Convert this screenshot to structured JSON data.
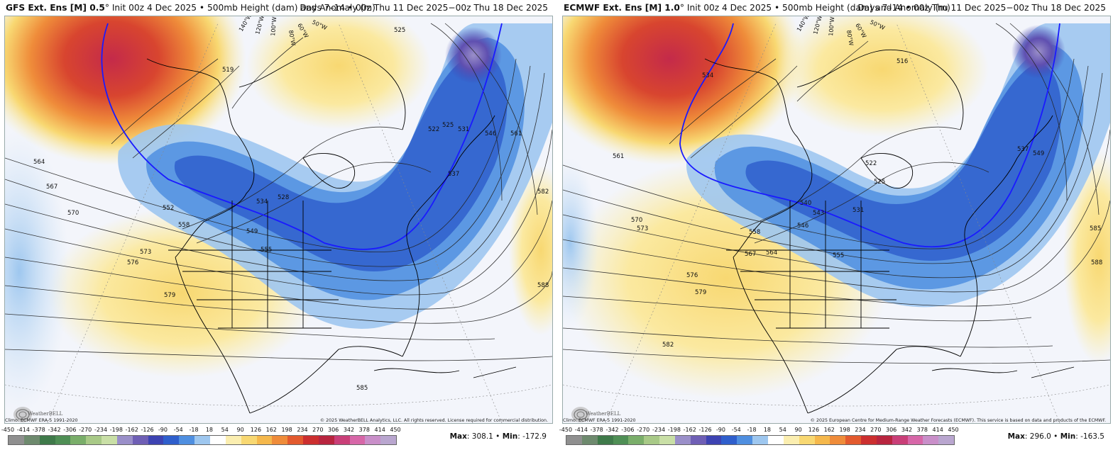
{
  "panels": [
    {
      "model_title": "GFS Ext. Ens [M] 0.5",
      "degree": "°",
      "init_text": "Init 00z 4 Dec 2025 • 500mb Height (dam) and Anomaly (m)",
      "valid_text": "Days 7–14 • 00z Thu 11 Dec 2025−00z Thu 18 Dec 2025",
      "climo_credit": "Climo: ECMWF ERA-5 1991-2020",
      "copyright": "© 2025 WeatherBELL Analytics, LLC. All rights reserved. License required for commercial distribution.",
      "max_label": "Max",
      "max_value": "308.1",
      "min_label": "Min",
      "min_value": "-172.9",
      "contour_labels": [
        "564",
        "567",
        "570",
        "552",
        "558",
        "573",
        "576",
        "579",
        "549",
        "555",
        "534",
        "528",
        "519",
        "522",
        "525",
        "531",
        "537",
        "546",
        "561",
        "582",
        "588",
        "585",
        "525"
      ],
      "lon_labels": [
        "140°W",
        "120°W",
        "100°W",
        "80°W",
        "60°W",
        "50°W"
      ]
    },
    {
      "model_title": "ECMWF Ext. Ens [M] 1.0",
      "degree": "°",
      "init_text": "Init 00z 4 Dec 2025 • 500mb Height (dam) and Anomaly (m)",
      "valid_text": "Days 7–14 • 00z Thu 11 Dec 2025−00z Thu 18 Dec 2025",
      "climo_credit": "Climo: ECMWF ERA-5 1991-2020",
      "copyright": "© 2025 European Centre for Medium-Range Weather Forecasts (ECMWF). This service is based on data and products of the ECMWF.",
      "max_label": "Max",
      "max_value": "296.0",
      "min_label": "Min",
      "min_value": "-163.5",
      "contour_labels": [
        "561",
        "570",
        "573",
        "576",
        "579",
        "582",
        "567",
        "564",
        "558",
        "555",
        "546",
        "543",
        "540",
        "534",
        "522",
        "525",
        "531",
        "537",
        "549",
        "585",
        "588",
        "516"
      ],
      "lon_labels": [
        "140°W",
        "120°W",
        "100°W",
        "80°W",
        "60°W",
        "50°W"
      ]
    }
  ],
  "colorbar": {
    "ticks": [
      "-450",
      "-414",
      "-378",
      "-342",
      "-306",
      "-270",
      "-234",
      "-198",
      "-162",
      "-126",
      "-90",
      "-54",
      "-18",
      "18",
      "54",
      "90",
      "126",
      "162",
      "198",
      "234",
      "270",
      "306",
      "342",
      "378",
      "414",
      "450"
    ],
    "colors": [
      "#8f8f8f",
      "#6e8a6e",
      "#3f7a4a",
      "#4f8f55",
      "#7aae6a",
      "#a8c987",
      "#c9dfa6",
      "#9a8fc9",
      "#6f5fb5",
      "#3d43b2",
      "#2f5fcc",
      "#4f8fe0",
      "#9ec7ef",
      "#ffffff",
      "#fbeeb0",
      "#f8d872",
      "#f5b84c",
      "#ef8c3a",
      "#e35a2e",
      "#cc2f2f",
      "#b8253f",
      "#c93f78",
      "#d767a8",
      "#c98fc9",
      "#b9a6cf"
    ]
  },
  "logo_text": "WeatherBELL"
}
